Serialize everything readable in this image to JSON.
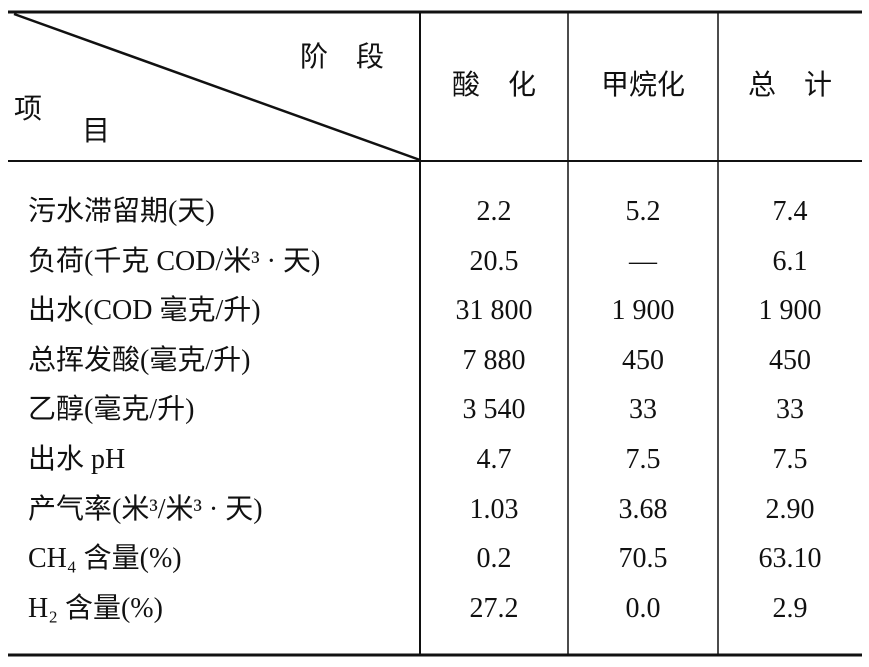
{
  "table": {
    "corner": {
      "top": "阶　段",
      "bottom_left": "项",
      "bottom_right": "目"
    },
    "columns": [
      "酸　化",
      "甲烷化",
      "总　计"
    ],
    "rows": [
      [
        "污水滞留期(天)",
        "2.2",
        "5.2",
        "7.4"
      ],
      [
        "负荷(千克 COD/米³ · 天)",
        "20.5",
        "—",
        "6.1"
      ],
      [
        "出水(COD 毫克/升)",
        "31 800",
        "1 900",
        "1 900"
      ],
      [
        "总挥发酸(毫克/升)",
        "7 880",
        "450",
        "450"
      ],
      [
        "乙醇(毫克/升)",
        "3 540",
        "33",
        "33"
      ],
      [
        "出水 pH",
        "4.7",
        "7.5",
        "7.5"
      ],
      [
        "产气率(米³/米³ · 天)",
        "1.03",
        "3.68",
        "2.90"
      ],
      [
        "CH₄ 含量(%)",
        "0.2",
        "70.5",
        "63.10"
      ],
      [
        "H₂ 含量(%)",
        "27.2",
        "0.0",
        "2.9"
      ]
    ]
  }
}
